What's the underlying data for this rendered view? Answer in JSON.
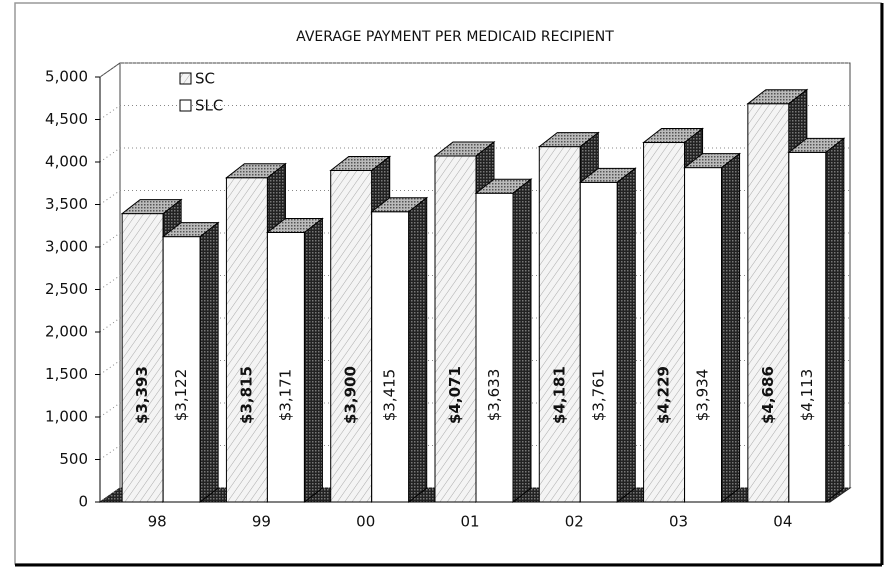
{
  "chart_data": {
    "type": "bar3d",
    "title": "AVERAGE PAYMENT PER MEDICAID RECIPIENT",
    "categories": [
      "98",
      "99",
      "00",
      "01",
      "02",
      "03",
      "04"
    ],
    "series": [
      {
        "name": "SC",
        "color": "#e6e6e6",
        "values": [
          3393,
          3815,
          3900,
          4071,
          4181,
          4229,
          4686
        ],
        "value_labels": [
          "$3,393",
          "$3,815",
          "$3,900",
          "$4,071",
          "$4,181",
          "$4,229",
          "$4,686"
        ]
      },
      {
        "name": "SLC",
        "color": "#ffffff",
        "values": [
          3122,
          3171,
          3415,
          3633,
          3761,
          3934,
          4113
        ],
        "value_labels": [
          "$3,122",
          "$3,171",
          "$3,415",
          "$3,633",
          "$3,761",
          "$3,934",
          "$4,113"
        ]
      }
    ],
    "ylim": [
      0,
      5000
    ],
    "yticks": [
      0,
      500,
      {
        "value": 1000,
        "label": "1,000"
      },
      {
        "value": 1500,
        "label": "1,500"
      },
      {
        "value": 2000,
        "label": "2,000"
      },
      {
        "value": 2500,
        "label": "2,500"
      },
      {
        "value": 3000,
        "label": "3,000"
      },
      {
        "value": 3500,
        "label": "3,500"
      },
      {
        "value": 4000,
        "label": "4,000"
      },
      {
        "value": 4500,
        "label": "4,500"
      },
      {
        "value": 5000,
        "label": "5,000"
      }
    ],
    "grid": true,
    "legend": "top-left"
  }
}
